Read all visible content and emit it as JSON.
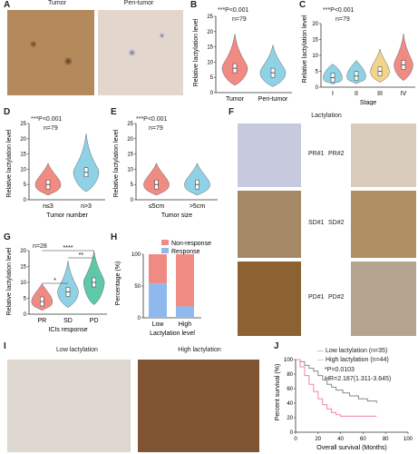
{
  "panels": {
    "A": {
      "label": "A",
      "left_title": "Tumor",
      "right_title": "Peri-tumor"
    },
    "B": {
      "label": "B",
      "stat": "***P<0.001",
      "n": "n=79",
      "ylabel": "Relative lactylation level"
    },
    "C": {
      "label": "C",
      "stat": "***P<0.001",
      "n": "n=79",
      "ylabel": "Relative lactylation level"
    },
    "D": {
      "label": "D",
      "stat": "***P<0.001",
      "n": "n=79",
      "ylabel": "Relative lactylation level"
    },
    "E": {
      "label": "E",
      "stat": "***P<0.001",
      "n": "n=79",
      "ylabel": "Relative lactylation level"
    },
    "F": {
      "label": "F",
      "title": "Lactylation",
      "images": [
        "PR#1",
        "PR#2",
        "SD#1",
        "SD#2",
        "PD#1",
        "PD#2"
      ]
    },
    "G": {
      "label": "G",
      "n": "n=28",
      "ylabel": "Relative lactylation level",
      "sig": [
        "*",
        "**",
        "****"
      ]
    },
    "H": {
      "label": "H",
      "ylabel": "Percentage (%)"
    },
    "I": {
      "label": "I",
      "left_title": "Low lactylation",
      "right_title": "High lactylation"
    },
    "J": {
      "label": "J",
      "legend": [
        "Low lactylation (n=35)",
        "High lactylation (n=44)"
      ],
      "stat1": "*P=0.0103",
      "stat2": "HR=2.187(1.311-3.645)"
    }
  },
  "colors": {
    "red": "#f08b84",
    "blue": "#8fd2e6",
    "yellow": "#f3d48b",
    "green": "#5ec9a8",
    "grey": "#8a8a8a",
    "pink": "#f0889f"
  },
  "chart_data": [
    {
      "id": "B",
      "type": "violin",
      "categories": [
        "Tumor",
        "Peri-tumor"
      ],
      "medians": [
        8,
        6.5
      ],
      "ylim": [
        0,
        25
      ],
      "yticks": [
        0,
        5,
        10,
        15,
        20,
        25
      ],
      "xlabel": ""
    },
    {
      "id": "C",
      "type": "violin",
      "categories": [
        "I",
        "II",
        "III",
        "IV"
      ],
      "medians": [
        3,
        3.5,
        5,
        7
      ],
      "ylim": [
        0,
        20
      ],
      "yticks": [
        0,
        5,
        10,
        15,
        20
      ],
      "xlabel": "Stage"
    },
    {
      "id": "D",
      "type": "violin",
      "categories": [
        "n≤3",
        "n>3"
      ],
      "medians": [
        5,
        9
      ],
      "ylim": [
        0,
        25
      ],
      "yticks": [
        0,
        5,
        10,
        15,
        20,
        25
      ],
      "xlabel": "Tumor number"
    },
    {
      "id": "E",
      "type": "violin",
      "categories": [
        "≤5cm",
        ">5cm"
      ],
      "medians": [
        5,
        5
      ],
      "ylim": [
        0,
        25
      ],
      "yticks": [
        0,
        5,
        10,
        15,
        20,
        25
      ],
      "xlabel": "Tumor size"
    },
    {
      "id": "G",
      "type": "violin",
      "categories": [
        "PR",
        "SD",
        "PD"
      ],
      "medians": [
        4,
        7,
        10
      ],
      "ylim": [
        0,
        20
      ],
      "yticks": [
        0,
        5,
        10,
        15,
        20
      ],
      "xlabel": "ICIs response"
    },
    {
      "id": "H",
      "type": "stacked-bar",
      "categories": [
        "Low",
        "High"
      ],
      "series": [
        {
          "name": "Response",
          "values": [
            54,
            18
          ]
        },
        {
          "name": "Non-response",
          "values": [
            46,
            82
          ]
        }
      ],
      "ylim": [
        0,
        100
      ],
      "yticks": [
        0,
        50,
        100
      ],
      "xlabel": "Lactylation level"
    },
    {
      "id": "J",
      "type": "km-survival",
      "series": [
        {
          "name": "Low lactylation (n=35)",
          "x": [
            0,
            4,
            8,
            12,
            16,
            20,
            24,
            28,
            32,
            36,
            42,
            48,
            56,
            64,
            72
          ],
          "y": [
            100,
            97,
            92,
            88,
            84,
            78,
            72,
            66,
            62,
            58,
            54,
            50,
            46,
            43,
            40
          ]
        },
        {
          "name": "High lactylation (n=44)",
          "x": [
            0,
            4,
            8,
            12,
            16,
            20,
            24,
            28,
            32,
            36,
            40,
            48,
            56,
            64,
            72
          ],
          "y": [
            100,
            90,
            78,
            66,
            56,
            46,
            38,
            32,
            27,
            24,
            22,
            22,
            22,
            22,
            22
          ]
        }
      ],
      "xlim": [
        0,
        100
      ],
      "xticks": [
        0,
        20,
        40,
        60,
        80,
        100
      ],
      "ylim": [
        0,
        100
      ],
      "yticks": [
        0,
        20,
        40,
        60,
        80,
        100
      ],
      "xlabel": "Overall survival (Months)",
      "ylabel": "Percent survival (%)"
    }
  ]
}
